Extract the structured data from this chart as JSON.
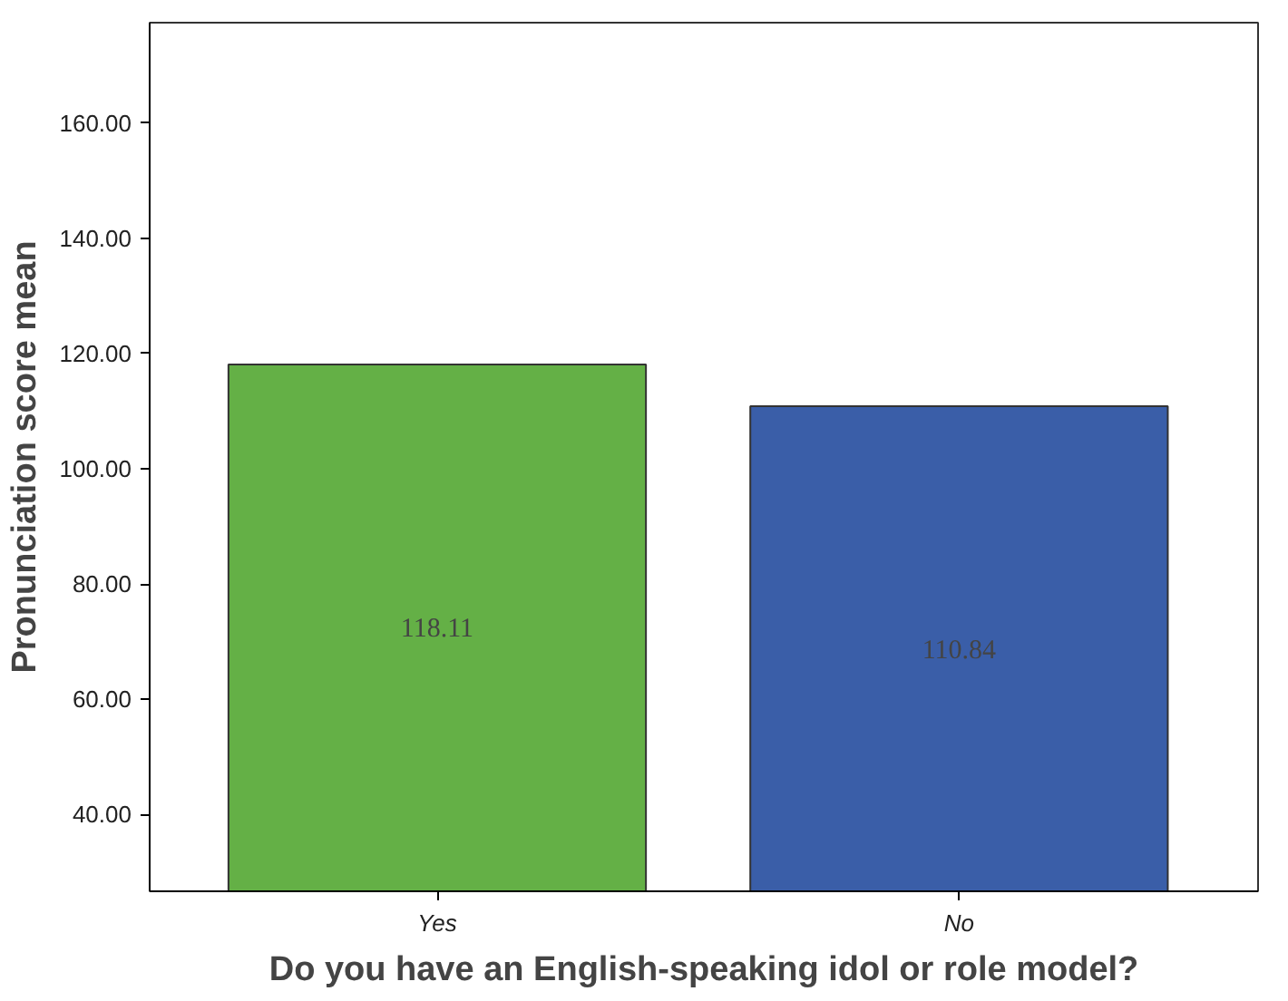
{
  "chart_data": {
    "type": "bar",
    "xlabel": "Do you have an English-speaking idol or role model?",
    "ylabel": "Pronunciation score mean",
    "categories": [
      "Yes",
      "No"
    ],
    "values": [
      118.11,
      110.84
    ],
    "colors": [
      "#64b046",
      "#3a5ea8"
    ],
    "value_labels": [
      "118.11",
      "110.84"
    ],
    "ylim": [
      26.7,
      177.4
    ],
    "yticks": [
      {
        "value": 40,
        "label": "40.00"
      },
      {
        "value": 60,
        "label": "60.00"
      },
      {
        "value": 80,
        "label": "80.00"
      },
      {
        "value": 100,
        "label": "100.00"
      },
      {
        "value": 120,
        "label": "120.00"
      },
      {
        "value": 140,
        "label": "140.00"
      },
      {
        "value": 160,
        "label": "160.00"
      }
    ],
    "grid": false
  }
}
